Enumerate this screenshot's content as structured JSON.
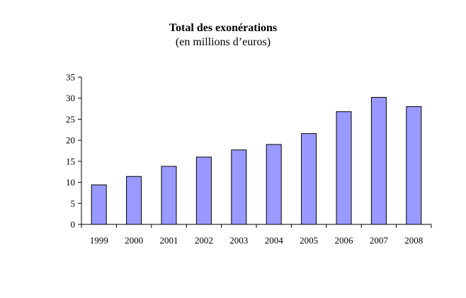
{
  "chart_data": {
    "type": "bar",
    "title": "Total des exonérations",
    "subtitle": "(en millions d’euros)",
    "xlabel": "",
    "ylabel": "",
    "categories": [
      "1999",
      "2000",
      "2001",
      "2002",
      "2003",
      "2004",
      "2005",
      "2006",
      "2007",
      "2008"
    ],
    "values": [
      9.4,
      11.4,
      13.8,
      16.0,
      17.7,
      19.0,
      21.6,
      26.8,
      30.2,
      28.0
    ],
    "ylim": [
      0,
      35
    ],
    "yticks": [
      "0",
      "5",
      "10",
      "15",
      "20",
      "25",
      "30",
      "35"
    ],
    "bar_color": "#9999ff",
    "grid": false,
    "legend": "none"
  }
}
